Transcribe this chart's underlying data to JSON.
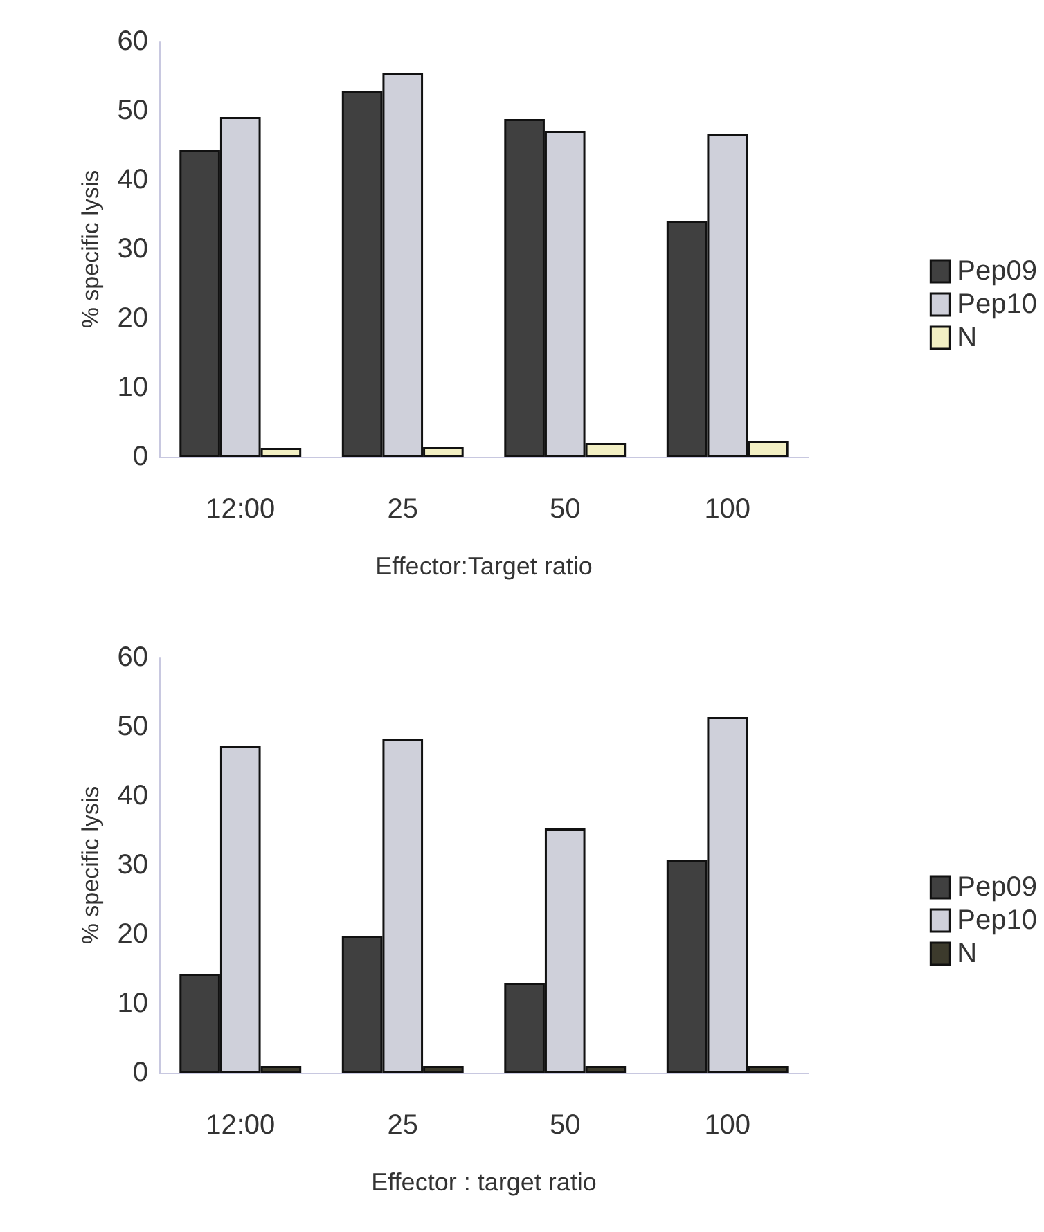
{
  "chart_data": [
    {
      "type": "bar",
      "xlabel": "Effector:Target ratio",
      "ylabel": "% specific lysis",
      "categories": [
        "12:00",
        "25",
        "50",
        "100"
      ],
      "series": [
        {
          "name": "Pep09",
          "color": "#404040",
          "values": [
            44.3,
            52.9,
            48.8,
            34.1
          ]
        },
        {
          "name": "Pep10",
          "color": "#cfd0da",
          "values": [
            49.1,
            55.5,
            47.1,
            46.6
          ]
        },
        {
          "name": "N",
          "color": "#f2efc4",
          "values": [
            1.3,
            1.4,
            2,
            2.3
          ]
        }
      ],
      "ylim": [
        0,
        60
      ],
      "yticks": [
        0,
        10,
        20,
        30,
        40,
        50,
        60
      ],
      "grid": false,
      "legend": "right"
    },
    {
      "type": "bar",
      "xlabel": "Effector : target ratio",
      "ylabel": "% specific lysis",
      "categories": [
        "12:00",
        "25",
        "50",
        "100"
      ],
      "series": [
        {
          "name": "Pep09",
          "color": "#404040",
          "values": [
            14.3,
            19.8,
            13,
            30.8
          ]
        },
        {
          "name": "Pep10",
          "color": "#cfd0da",
          "values": [
            47.2,
            48.2,
            35.3,
            51.4
          ]
        },
        {
          "name": "N",
          "color": "#3c3a2c",
          "values": [
            1,
            1,
            1,
            1
          ]
        }
      ],
      "ylim": [
        0,
        60
      ],
      "yticks": [
        0,
        10,
        20,
        30,
        40,
        50,
        60
      ],
      "grid": false,
      "legend": "right"
    }
  ]
}
